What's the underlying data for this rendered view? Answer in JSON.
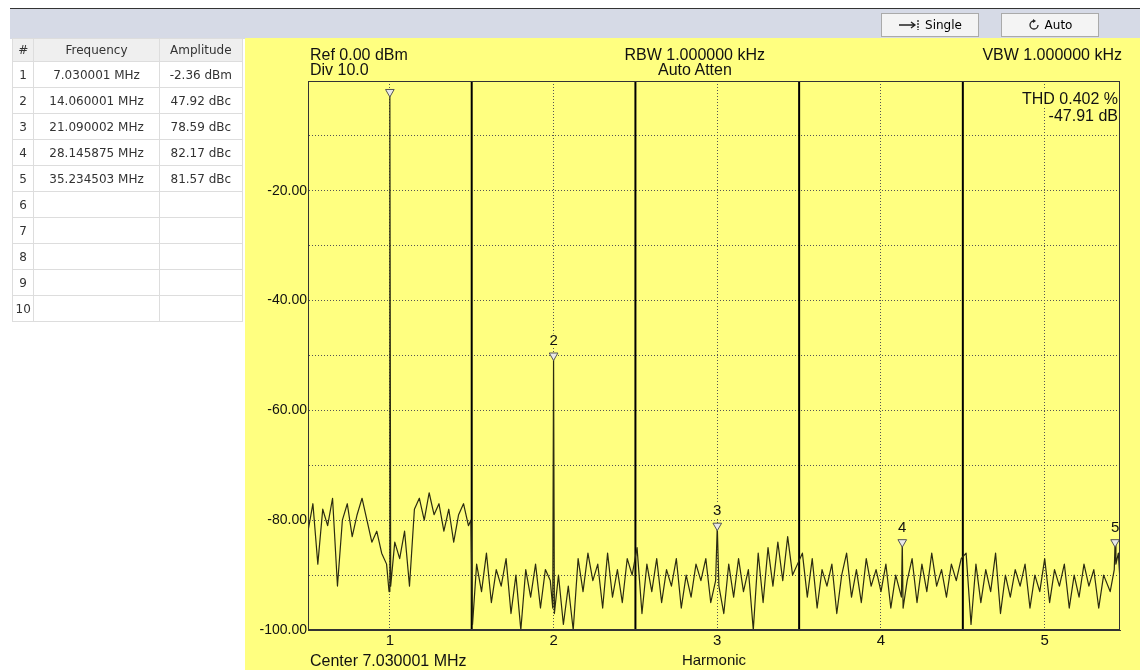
{
  "chart_data": {
    "type": "line",
    "xlabel": "Harmonic",
    "annotations": [
      "Ref 0.00 dBm",
      "Div 10.0",
      "RBW 1.000000 kHz",
      "Auto Atten",
      "VBW 1.000000 kHz",
      "THD 0.402 %",
      "-47.91 dB",
      "Center 7.030001 MHz",
      "Single",
      "Auto",
      "#",
      "Frequency",
      "Amplitude",
      "1",
      "7.030001 MHz",
      "-2.36 dBm",
      "2",
      "14.060001 MHz",
      "47.92 dBc",
      "3",
      "21.090002 MHz",
      "78.59 dBc",
      "4",
      "28.145875 MHz",
      "82.17 dBc",
      "5",
      "35.234503 MHz",
      "81.57 dBc",
      "6",
      "7",
      "8",
      "9",
      "10",
      {
        "text": "2",
        "x": 2,
        "y": -50
      },
      {
        "text": "3",
        "x": 3,
        "y": -81
      },
      {
        "text": "4",
        "x": 4.13,
        "y": -84
      },
      {
        "text": "5",
        "x": 5.43,
        "y": -84
      }
    ],
    "xlim": [
      0.5,
      5.46
    ],
    "xticks": [
      1,
      2,
      3,
      4,
      5
    ],
    "ylim": [
      -100,
      0
    ],
    "yticks": [
      {
        "value": -100,
        "label": "-100.00"
      },
      {
        "value": -90,
        "label": null
      },
      {
        "value": -80,
        "label": "-80.00"
      },
      {
        "value": -70,
        "label": null
      },
      {
        "value": -60,
        "label": "-60.00"
      },
      {
        "value": -50,
        "label": null
      },
      {
        "value": -40,
        "label": "-40.00"
      },
      {
        "value": -30,
        "label": null
      },
      {
        "value": -20,
        "label": "-20.00"
      },
      {
        "value": -10,
        "label": null
      }
    ],
    "grid": true,
    "marker": "none",
    "ref_lines": [
      {
        "axis": "x",
        "value": 1.5,
        "color": "#000000"
      },
      {
        "axis": "x",
        "value": 2.5,
        "color": "#000000"
      },
      {
        "axis": "x",
        "value": 3.5,
        "color": "#000000"
      },
      {
        "axis": "x",
        "value": 4.5,
        "color": "#000000"
      }
    ],
    "series": [
      {
        "type": "line",
        "color": "#2b2b10",
        "x": [
          0.5,
          0.53,
          0.56,
          0.59,
          0.62,
          0.65,
          0.68,
          0.71,
          0.74,
          0.77,
          0.8,
          0.83,
          0.86,
          0.89,
          0.92,
          0.95,
          0.98,
          0.995,
          1.0,
          1.005,
          1.03,
          1.06,
          1.09,
          1.12,
          1.15,
          1.18,
          1.21,
          1.24,
          1.27,
          1.3,
          1.33,
          1.36,
          1.39,
          1.42,
          1.45,
          1.48,
          1.495,
          1.505,
          1.53,
          1.56,
          1.59,
          1.62,
          1.65,
          1.68,
          1.71,
          1.74,
          1.77,
          1.8,
          1.83,
          1.86,
          1.89,
          1.92,
          1.95,
          1.98,
          1.995,
          2.0,
          2.005,
          2.03,
          2.06,
          2.09,
          2.12,
          2.15,
          2.18,
          2.21,
          2.24,
          2.27,
          2.3,
          2.33,
          2.36,
          2.39,
          2.42,
          2.45,
          2.48,
          2.51,
          2.54,
          2.57,
          2.6,
          2.63,
          2.66,
          2.69,
          2.72,
          2.75,
          2.78,
          2.81,
          2.84,
          2.87,
          2.9,
          2.93,
          2.96,
          2.99,
          3.0,
          3.01,
          3.04,
          3.07,
          3.1,
          3.13,
          3.16,
          3.19,
          3.22,
          3.25,
          3.28,
          3.31,
          3.34,
          3.37,
          3.4,
          3.43,
          3.46,
          3.49,
          3.52,
          3.55,
          3.58,
          3.61,
          3.64,
          3.67,
          3.7,
          3.73,
          3.76,
          3.79,
          3.82,
          3.85,
          3.88,
          3.91,
          3.94,
          3.97,
          4.0,
          4.03,
          4.06,
          4.09,
          4.125,
          4.13,
          4.135,
          4.16,
          4.19,
          4.22,
          4.25,
          4.28,
          4.31,
          4.34,
          4.37,
          4.4,
          4.43,
          4.46,
          4.49,
          4.52,
          4.55,
          4.58,
          4.61,
          4.64,
          4.67,
          4.7,
          4.73,
          4.76,
          4.79,
          4.82,
          4.85,
          4.88,
          4.91,
          4.94,
          4.97,
          5.0,
          5.03,
          5.06,
          5.09,
          5.12,
          5.15,
          5.18,
          5.21,
          5.24,
          5.27,
          5.3,
          5.33,
          5.36,
          5.4,
          5.425,
          5.43,
          5.435,
          5.45,
          5.46
        ],
        "values": [
          -82,
          -77,
          -88,
          -78,
          -81,
          -76,
          -92,
          -80,
          -77,
          -83,
          -79,
          -76,
          -80,
          -84,
          -82,
          -86,
          -88,
          -93,
          -2,
          -92,
          -84,
          -87,
          -82,
          -92,
          -78,
          -76,
          -80,
          -75,
          -79,
          -77,
          -82,
          -78,
          -84,
          -79,
          -77,
          -81,
          -80,
          -99,
          -88,
          -93,
          -86,
          -95,
          -89,
          -92,
          -87,
          -97,
          -90,
          -100,
          -89,
          -94,
          -88,
          -96,
          -89,
          -91,
          -96,
          -50,
          -97,
          -90,
          -99,
          -92,
          -100,
          -87,
          -93,
          -86,
          -91,
          -88,
          -96,
          -86,
          -94,
          -89,
          -95,
          -87,
          -90,
          -85,
          -97,
          -88,
          -93,
          -87,
          -95,
          -89,
          -92,
          -87,
          -96,
          -90,
          -94,
          -88,
          -91,
          -87,
          -95,
          -91,
          -81,
          -92,
          -97,
          -88,
          -94,
          -87,
          -93,
          -89,
          -100,
          -86,
          -95,
          -85,
          -92,
          -84,
          -91,
          -83,
          -90,
          -88,
          -86,
          -94,
          -87,
          -96,
          -89,
          -92,
          -88,
          -97,
          -90,
          -86,
          -94,
          -89,
          -95,
          -87,
          -92,
          -89,
          -93,
          -88,
          -96,
          -90,
          -94,
          -84,
          -96,
          -91,
          -87,
          -95,
          -88,
          -93,
          -86,
          -92,
          -89,
          -94,
          -88,
          -91,
          -87,
          -86,
          -99,
          -88,
          -95,
          -89,
          -93,
          -86,
          -97,
          -90,
          -94,
          -89,
          -92,
          -88,
          -96,
          -90,
          -93,
          -87,
          -95,
          -89,
          -92,
          -88,
          -96,
          -90,
          -94,
          -88,
          -92,
          -89,
          -96,
          -90,
          -93,
          -89,
          -84,
          -88,
          -86,
          -91
        ]
      },
      {
        "type": "scatter",
        "color": "#e8e8e8",
        "marker": "triangle",
        "x": [
          1,
          2,
          3,
          4.13,
          5.43
        ],
        "values": [
          -2,
          -50,
          -81,
          -84,
          -84
        ]
      }
    ]
  }
}
